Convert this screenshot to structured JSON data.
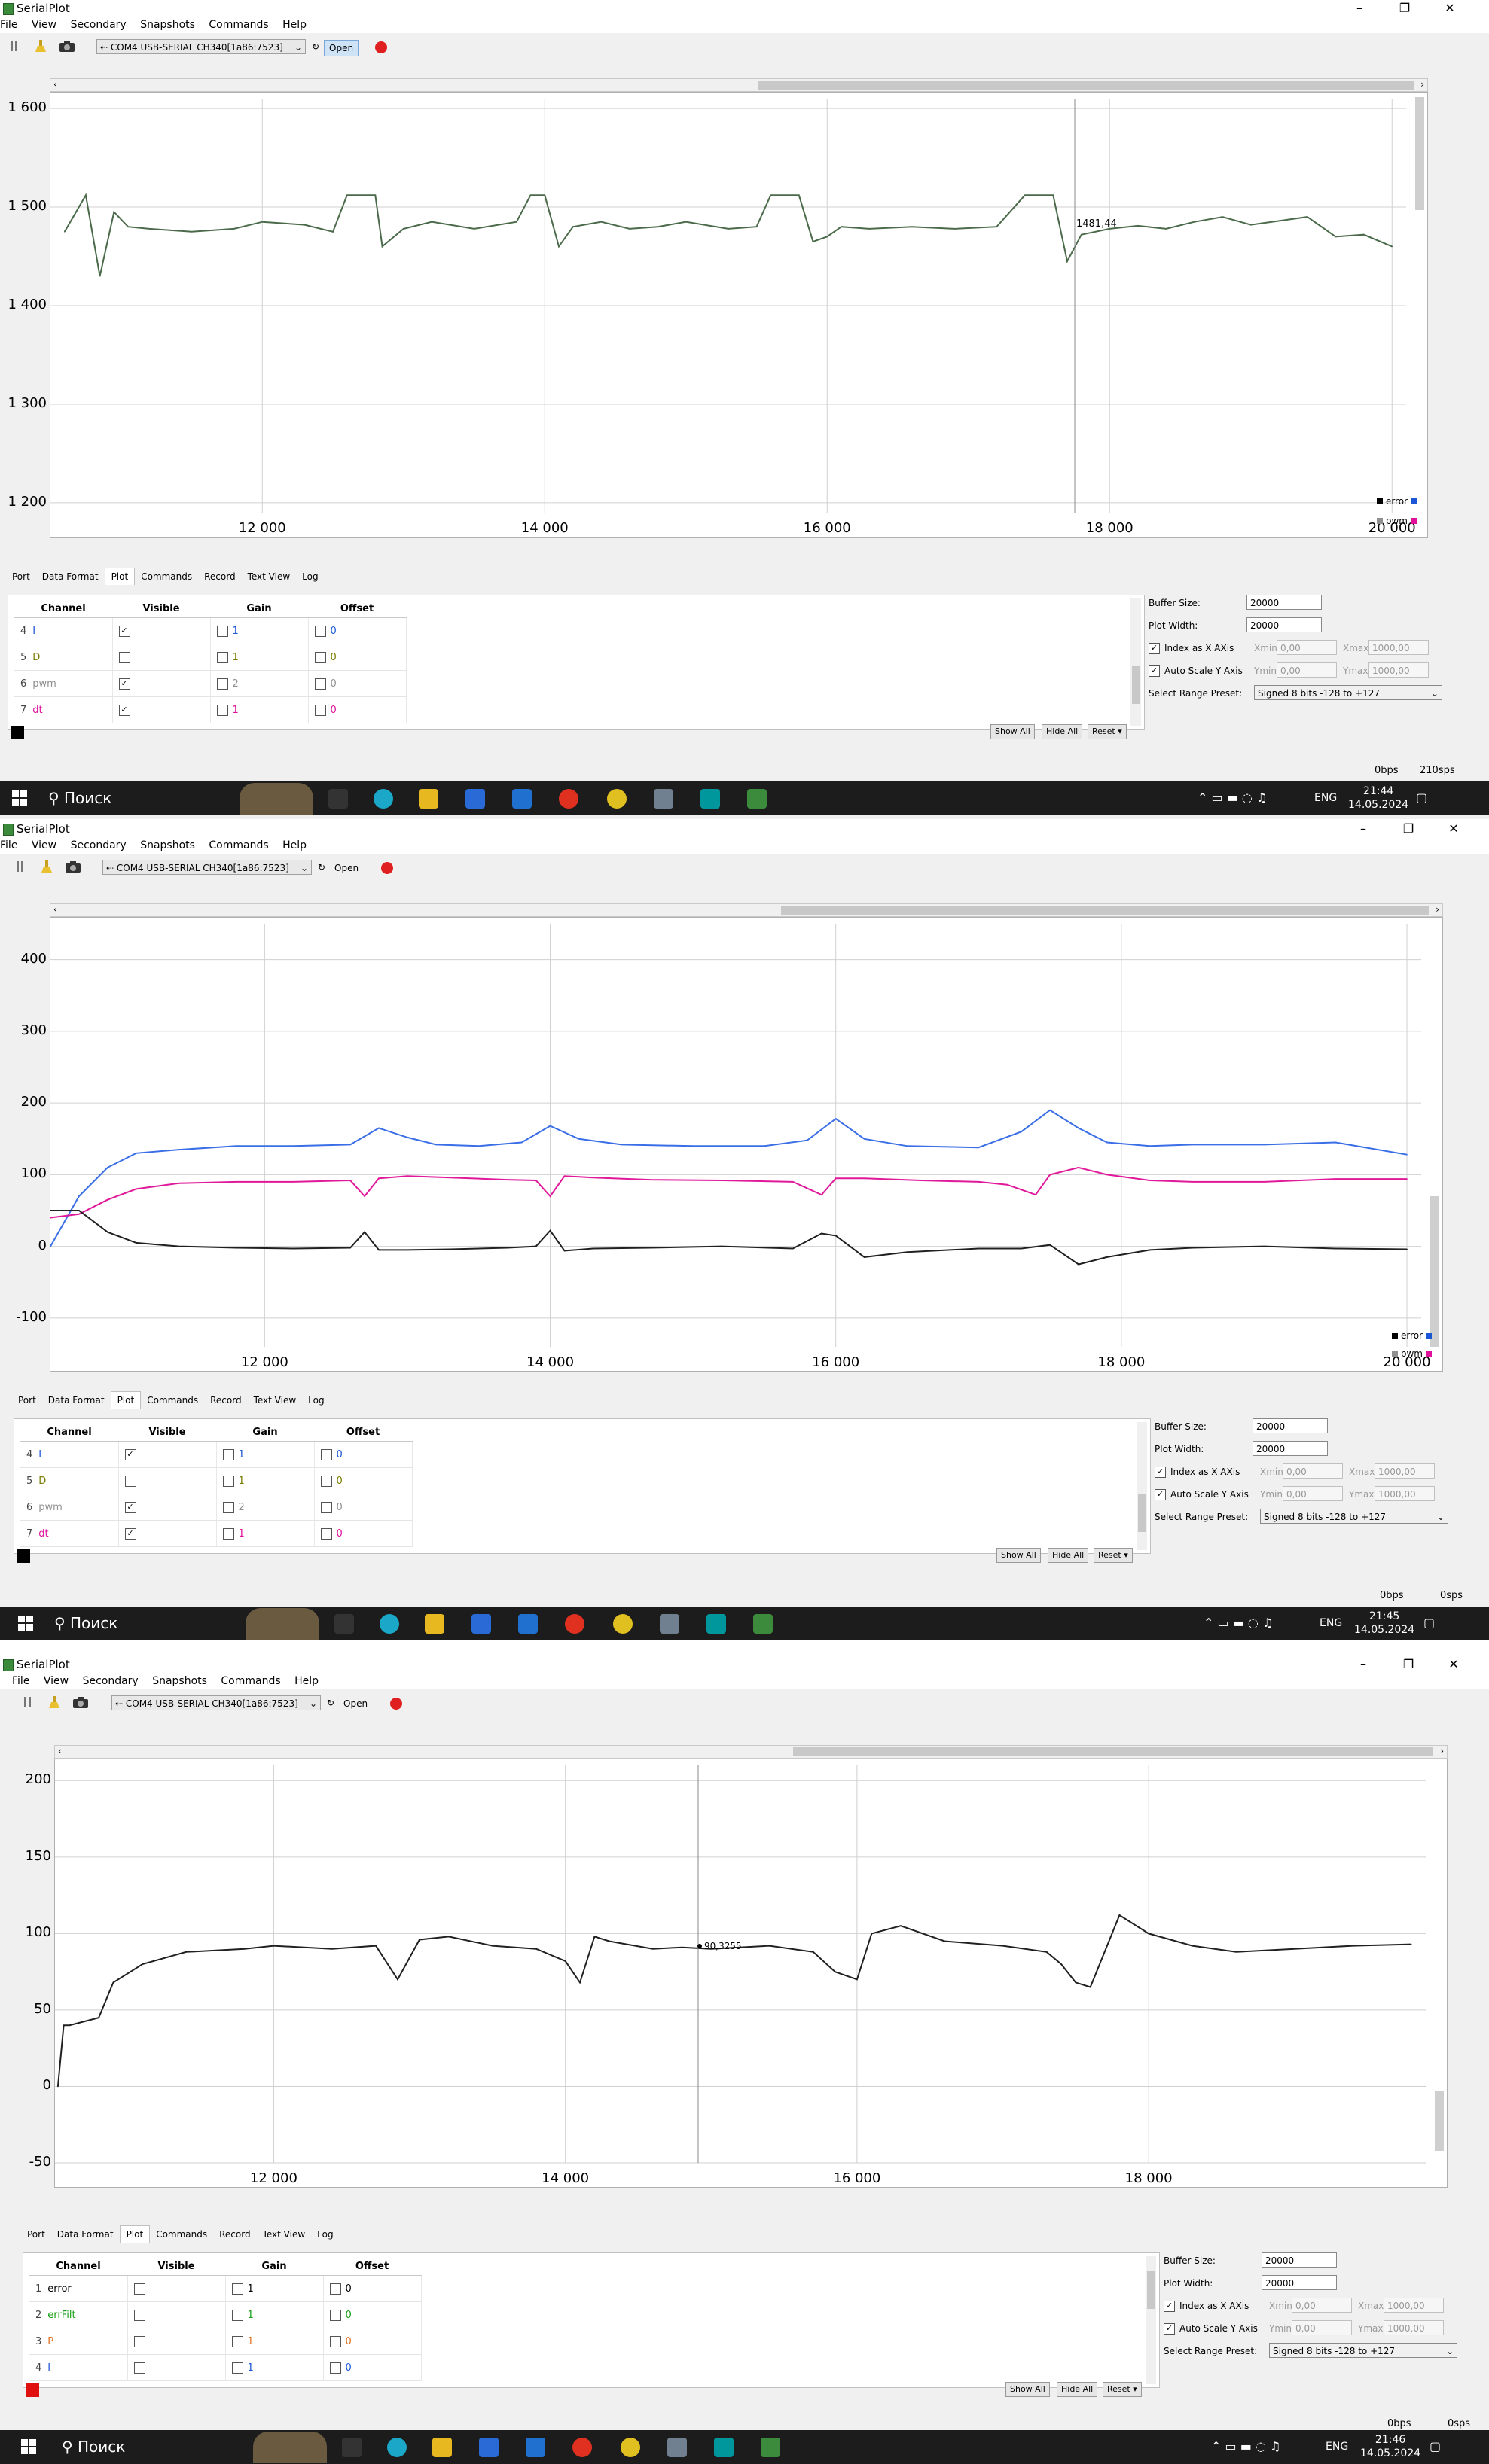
{
  "app": {
    "title": "SerialPlot",
    "menu": [
      "File",
      "View",
      "Secondary",
      "Snapshots",
      "Commands",
      "Help"
    ],
    "port": "COM4 USB-SERIAL CH340[1a86:7523]",
    "open_label": "Open"
  },
  "tabs": [
    "Port",
    "Data Format",
    "Plot",
    "Commands",
    "Record",
    "Text View",
    "Log"
  ],
  "table_headers": [
    "Channel",
    "Visible",
    "Gain",
    "Offset"
  ],
  "settings": {
    "buffer_size_label": "Buffer Size:",
    "buffer_size": "20000",
    "plot_width_label": "Plot Width:",
    "plot_width": "20000",
    "index_as_x_label": "Index as X AXis",
    "auto_scale_label": "Auto Scale Y Axis",
    "xmin_label": "Xmin",
    "xmin": "0,00",
    "xmax_label": "Xmax",
    "xmax": "1000,00",
    "ymin_label": "Ymin",
    "ymin": "0,00",
    "ymax_label": "Ymax",
    "ymax": "1000,00",
    "range_preset_label": "Select Range Preset:",
    "range_preset": "Signed 8 bits -128 to +127"
  },
  "buttons": {
    "show_all": "Show All",
    "hide_all": "Hide All",
    "reset": "Reset"
  },
  "taskbar": {
    "search": "Поиск",
    "lang": "ENG",
    "date": "14.05.2024"
  },
  "screens": [
    {
      "clock": "21:44",
      "status_left": "0bps",
      "status_right": "210sps",
      "marker_label": "1481,44",
      "legend": [
        "error",
        "pwm"
      ],
      "channels": [
        {
          "num": "4",
          "name": "I",
          "color": "#1a56d6",
          "visible": true,
          "gain": "1",
          "offset": "0"
        },
        {
          "num": "5",
          "name": "D",
          "color": "#7a7a00",
          "visible": false,
          "gain": "1",
          "offset": "0"
        },
        {
          "num": "6",
          "name": "pwm",
          "color": "#909090",
          "visible": true,
          "gain": "2",
          "offset": "0"
        },
        {
          "num": "7",
          "name": "dt",
          "color": "#e0109a",
          "visible": true,
          "gain": "1",
          "offset": "0"
        }
      ]
    },
    {
      "clock": "21:45",
      "status_left": "0bps",
      "status_right": "0sps",
      "legend": [
        "error",
        "pwm"
      ],
      "channels": [
        {
          "num": "4",
          "name": "I",
          "color": "#1a56d6",
          "visible": true,
          "gain": "1",
          "offset": "0"
        },
        {
          "num": "5",
          "name": "D",
          "color": "#7a7a00",
          "visible": false,
          "gain": "1",
          "offset": "0"
        },
        {
          "num": "6",
          "name": "pwm",
          "color": "#909090",
          "visible": true,
          "gain": "2",
          "offset": "0"
        },
        {
          "num": "7",
          "name": "dt",
          "color": "#e0109a",
          "visible": true,
          "gain": "1",
          "offset": "0"
        }
      ]
    },
    {
      "clock": "21:46",
      "status_left": "0bps",
      "status_right": "0sps",
      "marker_label": "90,3255",
      "channels": [
        {
          "num": "1",
          "name": "error",
          "color": "#000000",
          "visible": false,
          "gain": "1",
          "offset": "0"
        },
        {
          "num": "2",
          "name": "errFilt",
          "color": "#18a018",
          "visible": false,
          "gain": "1",
          "offset": "0"
        },
        {
          "num": "3",
          "name": "P",
          "color": "#e07020",
          "visible": false,
          "gain": "1",
          "offset": "0"
        },
        {
          "num": "4",
          "name": "I",
          "color": "#1a56d6",
          "visible": false,
          "gain": "1",
          "offset": "0"
        }
      ]
    }
  ],
  "chart_data": [
    {
      "type": "line",
      "xlim": [
        10500,
        20100
      ],
      "ylim": [
        1190,
        1610
      ],
      "x_ticks": [
        12000,
        14000,
        16000,
        18000,
        20000
      ],
      "x_tick_labels": [
        "12 000",
        "14 000",
        "16 000",
        "18 000",
        "20 000"
      ],
      "y_ticks": [
        1200,
        1300,
        1400,
        1500,
        1600
      ],
      "y_tick_labels": [
        "1 200",
        "1 300",
        "1 400",
        "1 500",
        "1 600"
      ],
      "grid": true,
      "series": [
        {
          "color": "#4a6a4a",
          "x": [
            10600,
            10750,
            10850,
            10950,
            11050,
            11200,
            11500,
            11800,
            12000,
            12300,
            12500,
            12600,
            12800,
            12850,
            13000,
            13200,
            13500,
            13800,
            13900,
            14000,
            14100,
            14200,
            14400,
            14600,
            14800,
            15000,
            15300,
            15500,
            15600,
            15800,
            15900,
            16000,
            16100,
            16300,
            16600,
            16900,
            17200,
            17400,
            17600,
            17700,
            17800,
            18000,
            18200,
            18400,
            18600,
            18800,
            19000,
            19200,
            19400,
            19600,
            19800,
            20000
          ],
          "y": [
            1475,
            1512,
            1430,
            1495,
            1480,
            1478,
            1475,
            1478,
            1485,
            1482,
            1475,
            1512,
            1512,
            1460,
            1478,
            1485,
            1478,
            1485,
            1512,
            1512,
            1460,
            1480,
            1485,
            1478,
            1480,
            1485,
            1478,
            1480,
            1512,
            1512,
            1465,
            1470,
            1480,
            1478,
            1480,
            1478,
            1480,
            1512,
            1512,
            1445,
            1472,
            1478,
            1481,
            1478,
            1485,
            1490,
            1482,
            1486,
            1490,
            1470,
            1472,
            1460
          ]
        }
      ]
    },
    {
      "type": "line",
      "xlim": [
        10500,
        20100
      ],
      "ylim": [
        -140,
        450
      ],
      "x_ticks": [
        12000,
        14000,
        16000,
        18000,
        20000
      ],
      "x_tick_labels": [
        "12 000",
        "14 000",
        "16 000",
        "18 000",
        "20 000"
      ],
      "y_ticks": [
        -100,
        0,
        100,
        200,
        300,
        400
      ],
      "y_tick_labels": [
        "-100",
        "0",
        "100",
        "200",
        "300",
        "400"
      ],
      "grid": true,
      "series": [
        {
          "color": "#3a6ee6",
          "x": [
            10500,
            10700,
            10900,
            11100,
            11400,
            11800,
            12200,
            12600,
            12800,
            13000,
            13200,
            13500,
            13800,
            14000,
            14200,
            14500,
            15000,
            15500,
            15800,
            16000,
            16200,
            16500,
            17000,
            17300,
            17500,
            17700,
            17900,
            18200,
            18500,
            19000,
            19500,
            20000
          ],
          "y": [
            0,
            70,
            110,
            130,
            135,
            140,
            140,
            142,
            165,
            152,
            142,
            140,
            145,
            168,
            150,
            142,
            140,
            140,
            148,
            178,
            150,
            140,
            138,
            160,
            190,
            165,
            145,
            140,
            142,
            142,
            145,
            128
          ]
        },
        {
          "color": "#e0189a",
          "x": [
            10500,
            10700,
            10900,
            11100,
            11400,
            11800,
            12200,
            12600,
            12700,
            12800,
            13000,
            13300,
            13700,
            13900,
            14000,
            14100,
            14300,
            14700,
            15200,
            15700,
            15900,
            16000,
            16200,
            16600,
            17000,
            17200,
            17400,
            17500,
            17700,
            17900,
            18200,
            18500,
            19000,
            19500,
            20000
          ],
          "y": [
            40,
            45,
            65,
            80,
            88,
            90,
            90,
            92,
            70,
            95,
            98,
            96,
            93,
            92,
            70,
            98,
            96,
            93,
            92,
            90,
            72,
            95,
            95,
            92,
            90,
            86,
            72,
            100,
            110,
            100,
            92,
            90,
            90,
            94,
            94
          ]
        },
        {
          "color": "#202020",
          "x": [
            10500,
            10700,
            10900,
            11100,
            11400,
            11800,
            12200,
            12600,
            12700,
            12800,
            13000,
            13300,
            13700,
            13900,
            14000,
            14100,
            14300,
            14700,
            15200,
            15700,
            15900,
            16000,
            16200,
            16500,
            17000,
            17300,
            17500,
            17700,
            17900,
            18200,
            18500,
            19000,
            19500,
            20000
          ],
          "y": [
            50,
            50,
            20,
            5,
            0,
            -2,
            -3,
            -2,
            20,
            -5,
            -5,
            -4,
            -2,
            0,
            22,
            -6,
            -3,
            -2,
            0,
            -3,
            18,
            15,
            -15,
            -8,
            -3,
            -3,
            2,
            -25,
            -15,
            -5,
            -2,
            0,
            -3,
            -4
          ]
        }
      ]
    },
    {
      "type": "line",
      "xlim": [
        10500,
        19900
      ],
      "ylim": [
        -50,
        210
      ],
      "x_ticks": [
        12000,
        14000,
        16000,
        18000
      ],
      "x_tick_labels": [
        "12 000",
        "14 000",
        "16 000",
        "18 000"
      ],
      "y_ticks": [
        -50,
        0,
        50,
        100,
        150,
        200
      ],
      "y_tick_labels": [
        "-50",
        "0",
        "50",
        "100",
        "150",
        "200"
      ],
      "grid": true,
      "series": [
        {
          "color": "#202020",
          "x": [
            10520,
            10560,
            10600,
            10800,
            10900,
            11100,
            11400,
            11800,
            12000,
            12400,
            12700,
            12850,
            13000,
            13200,
            13500,
            13800,
            14000,
            14100,
            14200,
            14300,
            14600,
            14800,
            15000,
            15400,
            15700,
            15850,
            16000,
            16100,
            16300,
            16600,
            17000,
            17300,
            17400,
            17500,
            17600,
            17800,
            18000,
            18300,
            18600,
            19000,
            19400,
            19800
          ],
          "y": [
            0,
            40,
            40,
            45,
            68,
            80,
            88,
            90,
            92,
            90,
            92,
            70,
            96,
            98,
            92,
            90,
            82,
            68,
            98,
            95,
            90,
            91,
            90,
            92,
            88,
            75,
            70,
            100,
            105,
            95,
            92,
            88,
            80,
            68,
            65,
            112,
            100,
            92,
            88,
            90,
            92,
            93
          ]
        }
      ]
    }
  ]
}
